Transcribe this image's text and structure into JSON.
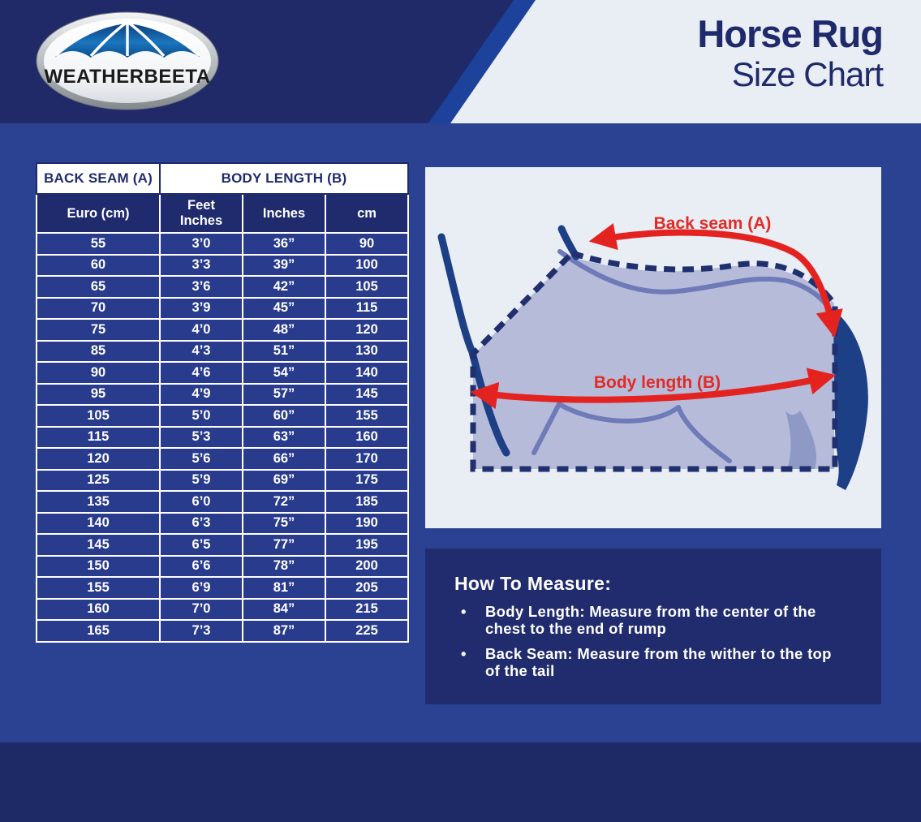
{
  "header": {
    "logo_text": "WEATHERBEETA",
    "title_line1": "Horse Rug",
    "title_line2": "Size Chart"
  },
  "size_table": {
    "group_headers": {
      "back_seam": "BACK SEAM (A)",
      "body_length": "BODY LENGTH (B)"
    },
    "column_headers": [
      "Euro (cm)",
      "Feet\nInches",
      "Inches",
      "cm"
    ],
    "rows": [
      [
        "55",
        "3’0",
        "36”",
        "90"
      ],
      [
        "60",
        "3’3",
        "39”",
        "100"
      ],
      [
        "65",
        "3’6",
        "42”",
        "105"
      ],
      [
        "70",
        "3’9",
        "45”",
        "115"
      ],
      [
        "75",
        "4’0",
        "48”",
        "120"
      ],
      [
        "85",
        "4’3",
        "51”",
        "130"
      ],
      [
        "90",
        "4’6",
        "54”",
        "140"
      ],
      [
        "95",
        "4’9",
        "57”",
        "145"
      ],
      [
        "105",
        "5’0",
        "60”",
        "155"
      ],
      [
        "115",
        "5’3",
        "63”",
        "160"
      ],
      [
        "120",
        "5’6",
        "66”",
        "170"
      ],
      [
        "125",
        "5’9",
        "69”",
        "175"
      ],
      [
        "135",
        "6’0",
        "72”",
        "185"
      ],
      [
        "140",
        "6’3",
        "75”",
        "190"
      ],
      [
        "145",
        "6’5",
        "77”",
        "195"
      ],
      [
        "150",
        "6’6",
        "78”",
        "200"
      ],
      [
        "155",
        "6’9",
        "81”",
        "205"
      ],
      [
        "160",
        "7’0",
        "84”",
        "215"
      ],
      [
        "165",
        "7’3",
        "87”",
        "225"
      ]
    ]
  },
  "diagram": {
    "back_seam_label": "Back seam (A)",
    "body_length_label": "Body length (B)"
  },
  "how_to_measure": {
    "heading": "How To Measure:",
    "bullets": [
      "Body Length: Measure from the center of the chest to the end of rump",
      "Back Seam: Measure from the wither to the top of the tail"
    ]
  },
  "colors": {
    "page_background": "#2b4191",
    "header_background": "#202a69",
    "header_panel_light": "#e9edf4",
    "diagonal_stripe": "#1c429c",
    "navy_text": "#1e2a6b",
    "table_cell_blue": "#293b8c",
    "table_header_navy": "#1f2b6d",
    "howto_panel": "#202c6e",
    "footer": "#1e2a66",
    "measure_red": "#e12b26",
    "rug_fill": "#b5bbd9",
    "horse_line_slate": "#6f7ab8",
    "horse_dark_navy": "#1d3f86",
    "dashed_outline": "#20306f"
  }
}
